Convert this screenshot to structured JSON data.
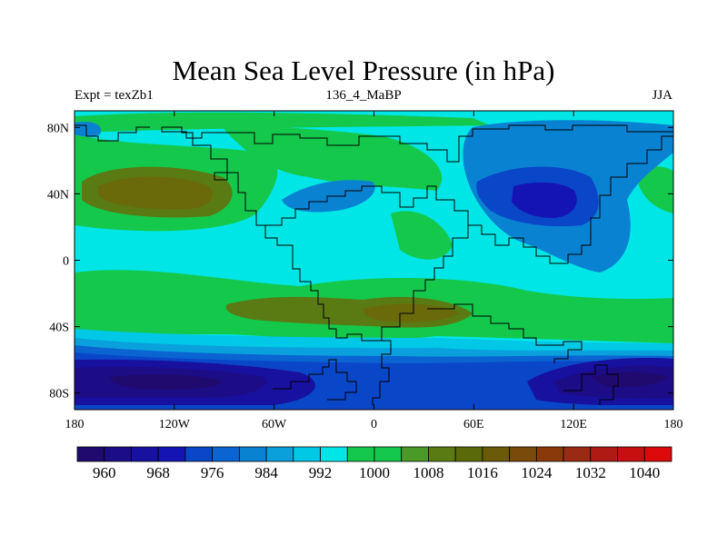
{
  "title": "Mean Sea Level Pressure (in hPa)",
  "subtitle_left": "Expt = texZb1",
  "subtitle_center": "136_4_MaBP",
  "subtitle_right": "JJA",
  "map": {
    "type": "contour-map",
    "variable": "Mean Sea Level Pressure",
    "units": "hPa",
    "lon_range": [
      -180,
      180
    ],
    "lat_range": [
      -90,
      90
    ],
    "lon_ticks": [
      {
        "value": -180,
        "label": "180"
      },
      {
        "value": -120,
        "label": "120W"
      },
      {
        "value": -60,
        "label": "60W"
      },
      {
        "value": 0,
        "label": "0"
      },
      {
        "value": 60,
        "label": "60E"
      },
      {
        "value": 120,
        "label": "120E"
      },
      {
        "value": 180,
        "label": "180"
      }
    ],
    "lat_ticks": [
      {
        "value": 80,
        "label": "80N"
      },
      {
        "value": 40,
        "label": "40N"
      },
      {
        "value": 0,
        "label": "0"
      },
      {
        "value": -40,
        "label": "40S"
      },
      {
        "value": -80,
        "label": "80S"
      }
    ],
    "background_level_color": "#00e6e6"
  },
  "colorbar": {
    "labels": [
      "960",
      "968",
      "976",
      "984",
      "992",
      "1000",
      "1008",
      "1016",
      "1024",
      "1032",
      "1040"
    ],
    "colors": [
      "#200a6e",
      "#1c0c86",
      "#18109e",
      "#1414b4",
      "#0a46c8",
      "#0a64d2",
      "#0a82d2",
      "#0aa0dc",
      "#00c8e6",
      "#00e6e6",
      "#14c84c",
      "#14c84c",
      "#4a9a28",
      "#5a7a14",
      "#5a6a0a",
      "#6a5a0a",
      "#7a4a0a",
      "#8a3a0a",
      "#9a2a14",
      "#b01a14",
      "#c80f0f",
      "#dc0a0a"
    ]
  }
}
